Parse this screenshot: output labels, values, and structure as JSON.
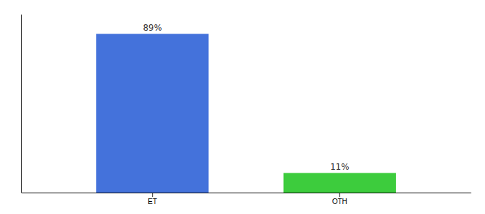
{
  "chart_data": {
    "type": "bar",
    "categories": [
      "ET",
      "OTH"
    ],
    "values": [
      89,
      11
    ],
    "value_labels": [
      "89%",
      "11%"
    ],
    "colors": [
      "#4472db",
      "#3dcc3d"
    ],
    "ylim": [
      0,
      100
    ],
    "data_labels": true,
    "tick_labels": "x"
  }
}
